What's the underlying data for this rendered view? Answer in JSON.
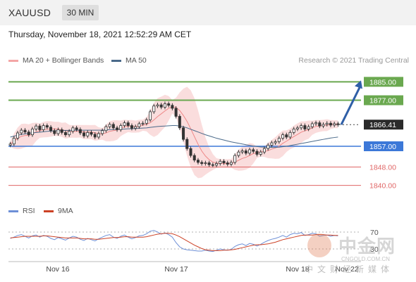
{
  "header": {
    "symbol": "XAUUSD",
    "timeframe": "30 MIN",
    "datetime": "Thursday, November 18, 2021 12:52:29 AM CET"
  },
  "legend": {
    "ma20": "MA 20 + Bollinger Bands",
    "ma50": "MA 50",
    "credit": "Research © 2021 Trading Central"
  },
  "rsi_legend": {
    "rsi": "RSI",
    "ma9": "9MA"
  },
  "watermark": {
    "brand": "中金网",
    "url": "CNGOLD.COM.CN",
    "sub": "中文财经新媒体"
  },
  "colors": {
    "bull": "#3a3a3a",
    "bear": "#3a3a3a",
    "resistance": "#6aa84f",
    "support": "#3c78d8",
    "support_low": "#e06666",
    "ma20": "#f4a6a6",
    "ma50": "#4a6a8a",
    "band": "#f8d2d2",
    "rsi": "#6d8fd6",
    "rsi_ma": "#cc4125",
    "arrow": "#2f5fa7"
  },
  "chart_data": {
    "type": "candlestick",
    "title": "XAUUSD 30 MIN",
    "x_labels": [
      "Nov 16",
      "Nov 17",
      "Nov 18",
      "Nov 22"
    ],
    "ylim": [
      1835,
      1890
    ],
    "last_price": 1866.41,
    "levels": [
      {
        "value": 1885.0,
        "label": "1885.00",
        "kind": "resistance"
      },
      {
        "value": 1877.0,
        "label": "1877.00",
        "kind": "resistance"
      },
      {
        "value": 1866.41,
        "label": "1866.41",
        "kind": "price"
      },
      {
        "value": 1857.0,
        "label": "1857.00",
        "kind": "support"
      },
      {
        "value": 1848.0,
        "label": "1848.00",
        "kind": "support_low"
      },
      {
        "value": 1840.0,
        "label": "1840.00",
        "kind": "support_low"
      }
    ],
    "projection": {
      "from": 1866.41,
      "to": 1885.0
    },
    "closes": [
      1858.0,
      1860.5,
      1862.8,
      1864.0,
      1863.2,
      1862.0,
      1864.5,
      1865.8,
      1864.2,
      1866.0,
      1865.3,
      1863.8,
      1862.5,
      1864.2,
      1863.0,
      1862.0,
      1863.5,
      1865.0,
      1864.3,
      1862.8,
      1861.5,
      1863.0,
      1862.2,
      1861.0,
      1862.5,
      1863.8,
      1865.5,
      1866.5,
      1865.0,
      1864.2,
      1866.0,
      1867.2,
      1866.0,
      1864.8,
      1865.5,
      1866.8,
      1867.0,
      1868.5,
      1872.0,
      1874.5,
      1875.0,
      1874.0,
      1875.5,
      1874.8,
      1873.5,
      1870.0,
      1865.0,
      1860.0,
      1856.0,
      1853.0,
      1851.0,
      1850.0,
      1849.5,
      1849.8,
      1849.0,
      1848.8,
      1849.5,
      1850.5,
      1849.8,
      1849.2,
      1850.0,
      1853.0,
      1854.5,
      1855.0,
      1854.0,
      1855.5,
      1854.8,
      1853.5,
      1854.5,
      1856.0,
      1857.5,
      1858.5,
      1859.0,
      1860.5,
      1862.0,
      1861.0,
      1863.0,
      1864.5,
      1865.0,
      1866.0,
      1864.5,
      1865.5,
      1866.8,
      1867.2,
      1865.8,
      1866.5,
      1867.0,
      1866.2,
      1866.8,
      1866.41
    ],
    "ma50": [
      1861.0,
      1861.4,
      1861.8,
      1862.1,
      1862.4,
      1862.6,
      1862.8,
      1863.0,
      1863.1,
      1863.3,
      1863.5,
      1863.6,
      1863.7,
      1863.8,
      1863.8,
      1863.9,
      1863.9,
      1864.0,
      1864.0,
      1864.0,
      1864.0,
      1864.0,
      1864.0,
      1864.0,
      1864.0,
      1864.0,
      1864.1,
      1864.2,
      1864.3,
      1864.3,
      1864.4,
      1864.5,
      1864.6,
      1864.6,
      1864.7,
      1864.8,
      1864.9,
      1865.0,
      1865.2,
      1865.4,
      1865.6,
      1865.7,
      1865.8,
      1865.9,
      1866.0,
      1866.0,
      1865.8,
      1865.5,
      1865.0,
      1864.4,
      1863.8,
      1863.2,
      1862.6,
      1862.0,
      1861.5,
      1861.0,
      1860.5,
      1860.1,
      1859.7,
      1859.3,
      1858.9,
      1858.6,
      1858.3,
      1858.0,
      1857.7,
      1857.4,
      1857.1,
      1856.9,
      1856.7,
      1856.6,
      1856.5,
      1856.5,
      1856.5,
      1856.6,
      1856.8,
      1857.0,
      1857.3,
      1857.6,
      1857.9,
      1858.2,
      1858.5,
      1858.8,
      1859.1,
      1859.4,
      1859.7,
      1860.0,
      1860.3,
      1860.6,
      1860.8,
      1861.0
    ],
    "rsi": [
      55,
      58,
      62,
      64,
      60,
      56,
      61,
      63,
      58,
      62,
      60,
      55,
      52,
      57,
      54,
      51,
      56,
      60,
      58,
      53,
      50,
      55,
      52,
      49,
      54,
      58,
      62,
      64,
      58,
      55,
      60,
      63,
      58,
      54,
      57,
      61,
      62,
      66,
      72,
      74,
      70,
      65,
      68,
      64,
      58,
      45,
      35,
      30,
      28,
      27,
      26,
      25,
      25,
      27,
      25,
      24,
      27,
      30,
      28,
      27,
      29,
      36,
      40,
      42,
      38,
      43,
      41,
      37,
      41,
      46,
      50,
      53,
      55,
      58,
      62,
      58,
      64,
      67,
      66,
      69,
      62,
      64,
      67,
      66,
      60,
      62,
      63,
      60,
      62,
      61
    ],
    "rsi_ma": [
      56,
      57,
      58,
      59,
      60,
      60,
      60,
      60,
      60,
      61,
      61,
      60,
      59,
      58,
      57,
      56,
      56,
      56,
      56,
      55,
      54,
      54,
      54,
      53,
      53,
      54,
      55,
      56,
      57,
      57,
      58,
      59,
      59,
      58,
      58,
      58,
      58,
      59,
      61,
      63,
      65,
      66,
      67,
      67,
      66,
      63,
      59,
      54,
      49,
      44,
      39,
      35,
      31,
      28,
      27,
      26,
      26,
      26,
      27,
      27,
      28,
      29,
      31,
      33,
      35,
      37,
      39,
      40,
      40,
      41,
      42,
      44,
      46,
      49,
      52,
      54,
      56,
      58,
      60,
      62,
      63,
      63,
      63,
      64,
      64,
      64,
      63,
      63,
      62,
      62
    ],
    "rsi_levels": [
      70,
      30
    ]
  }
}
